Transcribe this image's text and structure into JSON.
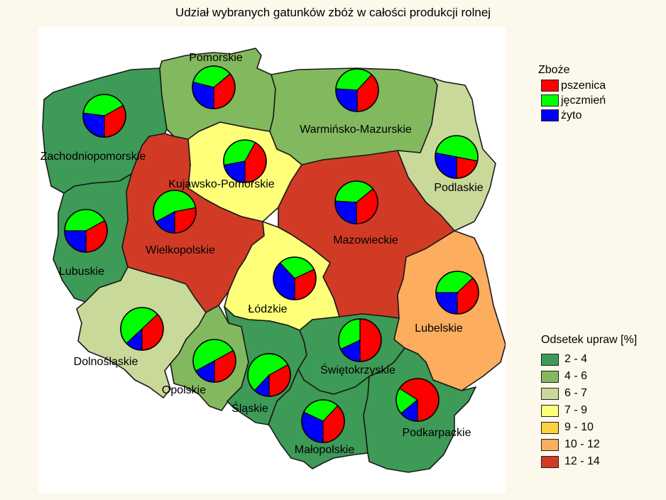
{
  "title": "Udział wybranych gatunków zbóż w całości produkcji rolnej",
  "cereal_legend": {
    "title": "Zboże",
    "items": [
      {
        "label": "pszenica",
        "color": "#ff0000"
      },
      {
        "label": "jęczmień",
        "color": "#00ff00"
      },
      {
        "label": "żyto",
        "color": "#0000ff"
      }
    ]
  },
  "share_legend": {
    "title": "Odsetek upraw [%]",
    "classes": [
      {
        "label": "2 - 4",
        "color": "#3e9a57"
      },
      {
        "label": "4 - 6",
        "color": "#83b95e"
      },
      {
        "label": "6 - 7",
        "color": "#c9d99a"
      },
      {
        "label": "7 - 9",
        "color": "#ffff7a"
      },
      {
        "label": "9 - 10",
        "color": "#fdd23c"
      },
      {
        "label": "10 - 12",
        "color": "#fdad5e"
      },
      {
        "label": "12 - 14",
        "color": "#d13b26"
      }
    ]
  },
  "regions": [
    {
      "id": "zachodniopomorskie",
      "name": "Zachodniopomorskie",
      "share_class": "2 - 4",
      "pie": [
        0.33,
        0.4,
        0.27
      ]
    },
    {
      "id": "pomorskie",
      "name": "Pomorskie",
      "share_class": "4 - 6",
      "pie": [
        0.36,
        0.35,
        0.29
      ]
    },
    {
      "id": "warminsko-mazurskie",
      "name": "Warmińsko-Mazurskie",
      "share_class": "4 - 6",
      "pie": [
        0.38,
        0.36,
        0.26
      ]
    },
    {
      "id": "podlaskie",
      "name": "Podlaskie",
      "share_class": "6 - 7",
      "pie": [
        0.22,
        0.5,
        0.28
      ]
    },
    {
      "id": "kujawsko-pomorskie",
      "name": "Kujawsko-Pomorskie",
      "share_class": "7 - 9",
      "pie": [
        0.42,
        0.36,
        0.22
      ]
    },
    {
      "id": "wielkopolskie",
      "name": "Wielkopolskie",
      "share_class": "12 - 14",
      "pie": [
        0.28,
        0.55,
        0.17
      ]
    },
    {
      "id": "mazowieckie",
      "name": "Mazowieckie",
      "share_class": "12 - 14",
      "pie": [
        0.36,
        0.38,
        0.26
      ]
    },
    {
      "id": "lubuskie",
      "name": "Lubuskie",
      "share_class": "2 - 4",
      "pie": [
        0.33,
        0.42,
        0.25
      ]
    },
    {
      "id": "lodzkie",
      "name": "Łódzkie",
      "share_class": "7 - 9",
      "pie": [
        0.32,
        0.3,
        0.38
      ]
    },
    {
      "id": "lubelskie",
      "name": "Lubelskie",
      "share_class": "10 - 12",
      "pie": [
        0.37,
        0.38,
        0.25
      ]
    },
    {
      "id": "dolnoslaskie",
      "name": "Dolnośląskie",
      "share_class": "6 - 7",
      "pie": [
        0.37,
        0.5,
        0.13
      ]
    },
    {
      "id": "opolskie",
      "name": "Opolskie",
      "share_class": "4 - 6",
      "pie": [
        0.33,
        0.5,
        0.17
      ]
    },
    {
      "id": "slaskie",
      "name": "Śląskie",
      "share_class": "2 - 4",
      "pie": [
        0.33,
        0.55,
        0.12
      ]
    },
    {
      "id": "swietokrzyskie",
      "name": "Świętokrzyskie",
      "share_class": "2 - 4",
      "pie": [
        0.5,
        0.32,
        0.18
      ]
    },
    {
      "id": "malopolskie",
      "name": "Małopolskie",
      "share_class": "2 - 4",
      "pie": [
        0.38,
        0.3,
        0.32
      ]
    },
    {
      "id": "podkarpackie",
      "name": "Podkarpackie",
      "share_class": "2 - 4",
      "pie": [
        0.66,
        0.2,
        0.14
      ]
    }
  ]
}
